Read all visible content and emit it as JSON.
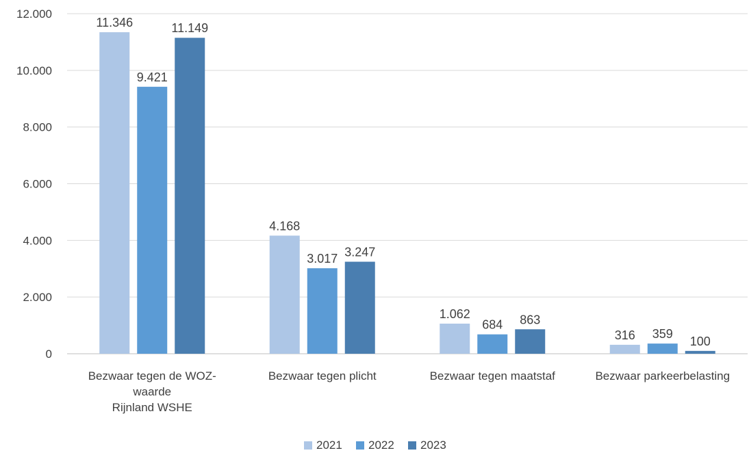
{
  "chart_data": {
    "type": "bar",
    "categories": [
      [
        "Bezwaar tegen de WOZ-",
        "waarde",
        "Rijnland WSHE"
      ],
      [
        "Bezwaar tegen plicht"
      ],
      [
        "Bezwaar tegen maatstaf"
      ],
      [
        "Bezwaar parkeerbelasting"
      ]
    ],
    "series": [
      {
        "name": "2021",
        "color": "#adc6e6",
        "values": [
          11346,
          4168,
          1062,
          316
        ],
        "labels": [
          "11.346",
          "4.168",
          "1.062",
          "316"
        ]
      },
      {
        "name": "2022",
        "color": "#5b9bd5",
        "values": [
          9421,
          3017,
          684,
          359
        ],
        "labels": [
          "9.421",
          "3.017",
          "684",
          "359"
        ]
      },
      {
        "name": "2023",
        "color": "#4a7eb0",
        "values": [
          11149,
          3247,
          863,
          100
        ],
        "labels": [
          "11.149",
          "3.247",
          "863",
          "100"
        ]
      }
    ],
    "ylim": [
      0,
      12000
    ],
    "yticks": [
      0,
      2000,
      4000,
      6000,
      8000,
      10000,
      12000
    ],
    "ytick_labels": [
      "0",
      "2.000",
      "4.000",
      "6.000",
      "8.000",
      "10.000",
      "12.000"
    ],
    "grid": true,
    "legend_position": "bottom-center",
    "title": "",
    "xlabel": "",
    "ylabel": ""
  }
}
